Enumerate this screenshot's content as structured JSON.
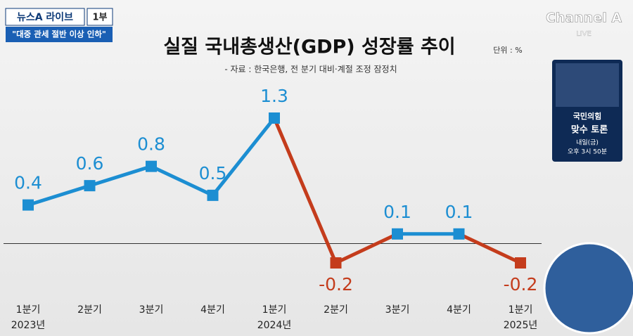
{
  "chart_data": {
    "type": "line",
    "title": "실질 국내총생산(GDP) 성장률 추이",
    "unit": "단위 : %",
    "source": "- 자료 : 한국은행, 전 분기 대비·계절 조정 잠정치",
    "categories": [
      "1분기",
      "2분기",
      "3분기",
      "4분기",
      "1분기",
      "2분기",
      "3분기",
      "4분기",
      "1분기"
    ],
    "category_years": [
      "2023년",
      null,
      null,
      null,
      "2024년",
      null,
      null,
      null,
      "2025년"
    ],
    "values": [
      0.4,
      0.6,
      0.8,
      0.5,
      1.3,
      -0.2,
      0.1,
      0.1,
      -0.2
    ],
    "color": "#1c8ed2",
    "negative_color": "#c43c1c"
  },
  "overlay": {
    "program": "뉴스A 라이브",
    "part": "1부",
    "headline": "\"대중 관세 절반 이상 인하\"",
    "channel": "Channel A",
    "live": "LIVE",
    "promo": {
      "party": "국민의힘",
      "show": "맞수 토론",
      "day": "내일(금)",
      "time": "오후 3시 50분"
    }
  }
}
